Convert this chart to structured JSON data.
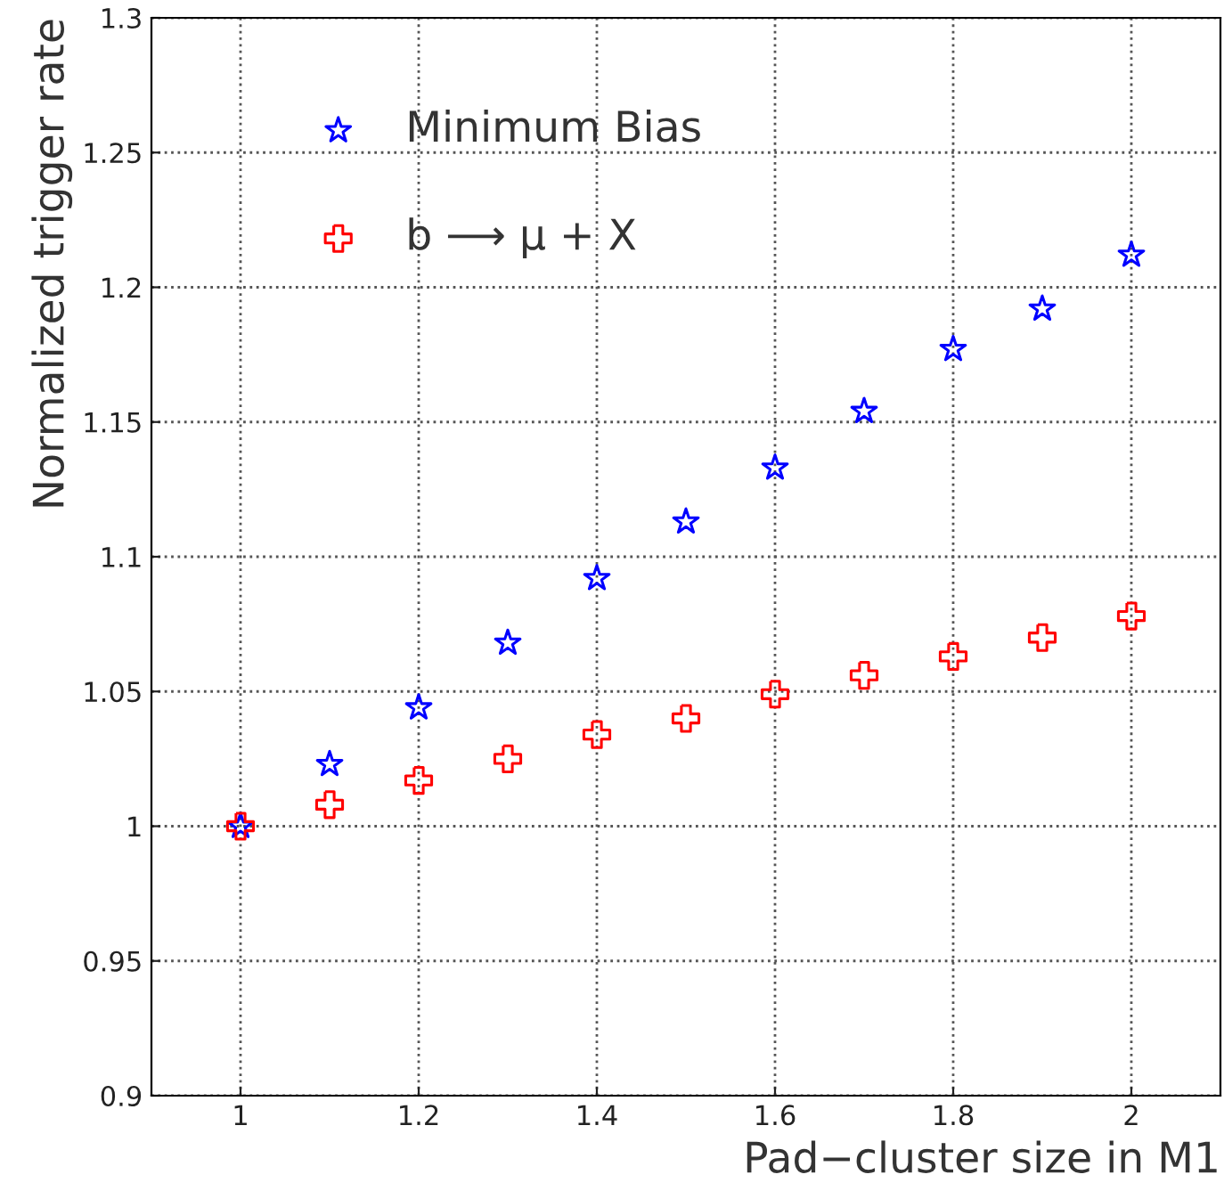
{
  "chart_data": {
    "type": "scatter",
    "xlabel": "Pad−cluster size in M1",
    "ylabel": "Normalized trigger rate",
    "x": [
      1,
      1.1,
      1.2,
      1.3,
      1.4,
      1.5,
      1.6,
      1.7,
      1.8,
      1.9,
      2
    ],
    "series": [
      {
        "name": "Minimum Bias",
        "color": "#0000ff",
        "marker": "star",
        "values": [
          1.0,
          1.023,
          1.044,
          1.068,
          1.092,
          1.113,
          1.133,
          1.154,
          1.177,
          1.192,
          1.212
        ]
      },
      {
        "name": "b ⟶ μ + X",
        "color": "#ff0000",
        "marker": "cross",
        "values": [
          1.0,
          1.008,
          1.017,
          1.025,
          1.034,
          1.04,
          1.049,
          1.056,
          1.063,
          1.07,
          1.078
        ]
      }
    ],
    "xlim": [
      0.9,
      2.1
    ],
    "xticks": [
      1,
      1.2,
      1.4,
      1.6,
      1.8,
      2
    ],
    "ylim": [
      0.9,
      1.3
    ],
    "yticks": [
      0.9,
      0.95,
      1,
      1.05,
      1.1,
      1.15,
      1.2,
      1.25,
      1.3
    ],
    "grid": true,
    "legend": "top left"
  }
}
